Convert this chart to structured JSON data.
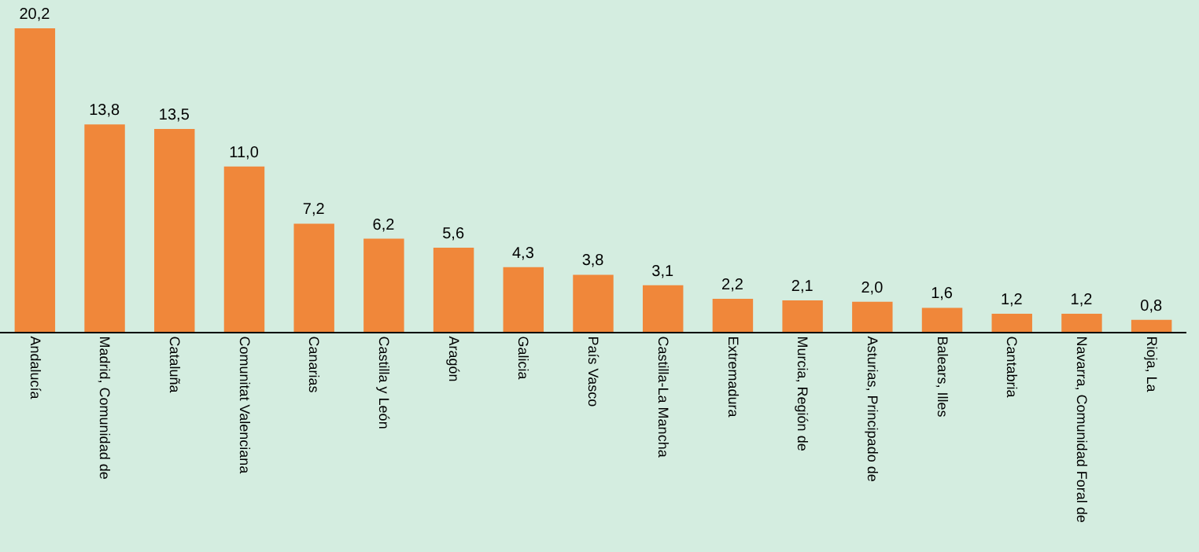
{
  "chart_data": {
    "type": "bar",
    "categories": [
      "Andalucía",
      "Madrid, Comunidad de",
      "Cataluña",
      "Comunitat Valenciana",
      "Canarias",
      "Castilla y León",
      "Aragón",
      "Galicia",
      "País Vasco",
      "Castilla-La Mancha",
      "Extremadura",
      "Murcia, Región de",
      "Asturias, Principado de",
      "Balears, Illes",
      "Cantabria",
      "Navarra, Comunidad Foral de",
      "Rioja, La"
    ],
    "values": [
      20.2,
      13.8,
      13.5,
      11.0,
      7.2,
      6.2,
      5.6,
      4.3,
      3.8,
      3.1,
      2.2,
      2.1,
      2.0,
      1.6,
      1.2,
      1.2,
      0.8
    ],
    "value_labels": [
      "20,2",
      "13,8",
      "13,5",
      "11,0",
      "7,2",
      "6,2",
      "5,6",
      "4,3",
      "3,8",
      "3,1",
      "2,2",
      "2,1",
      "2,0",
      "1,6",
      "1,2",
      "1,2",
      "0,8"
    ],
    "color": "#f0873a"
  }
}
